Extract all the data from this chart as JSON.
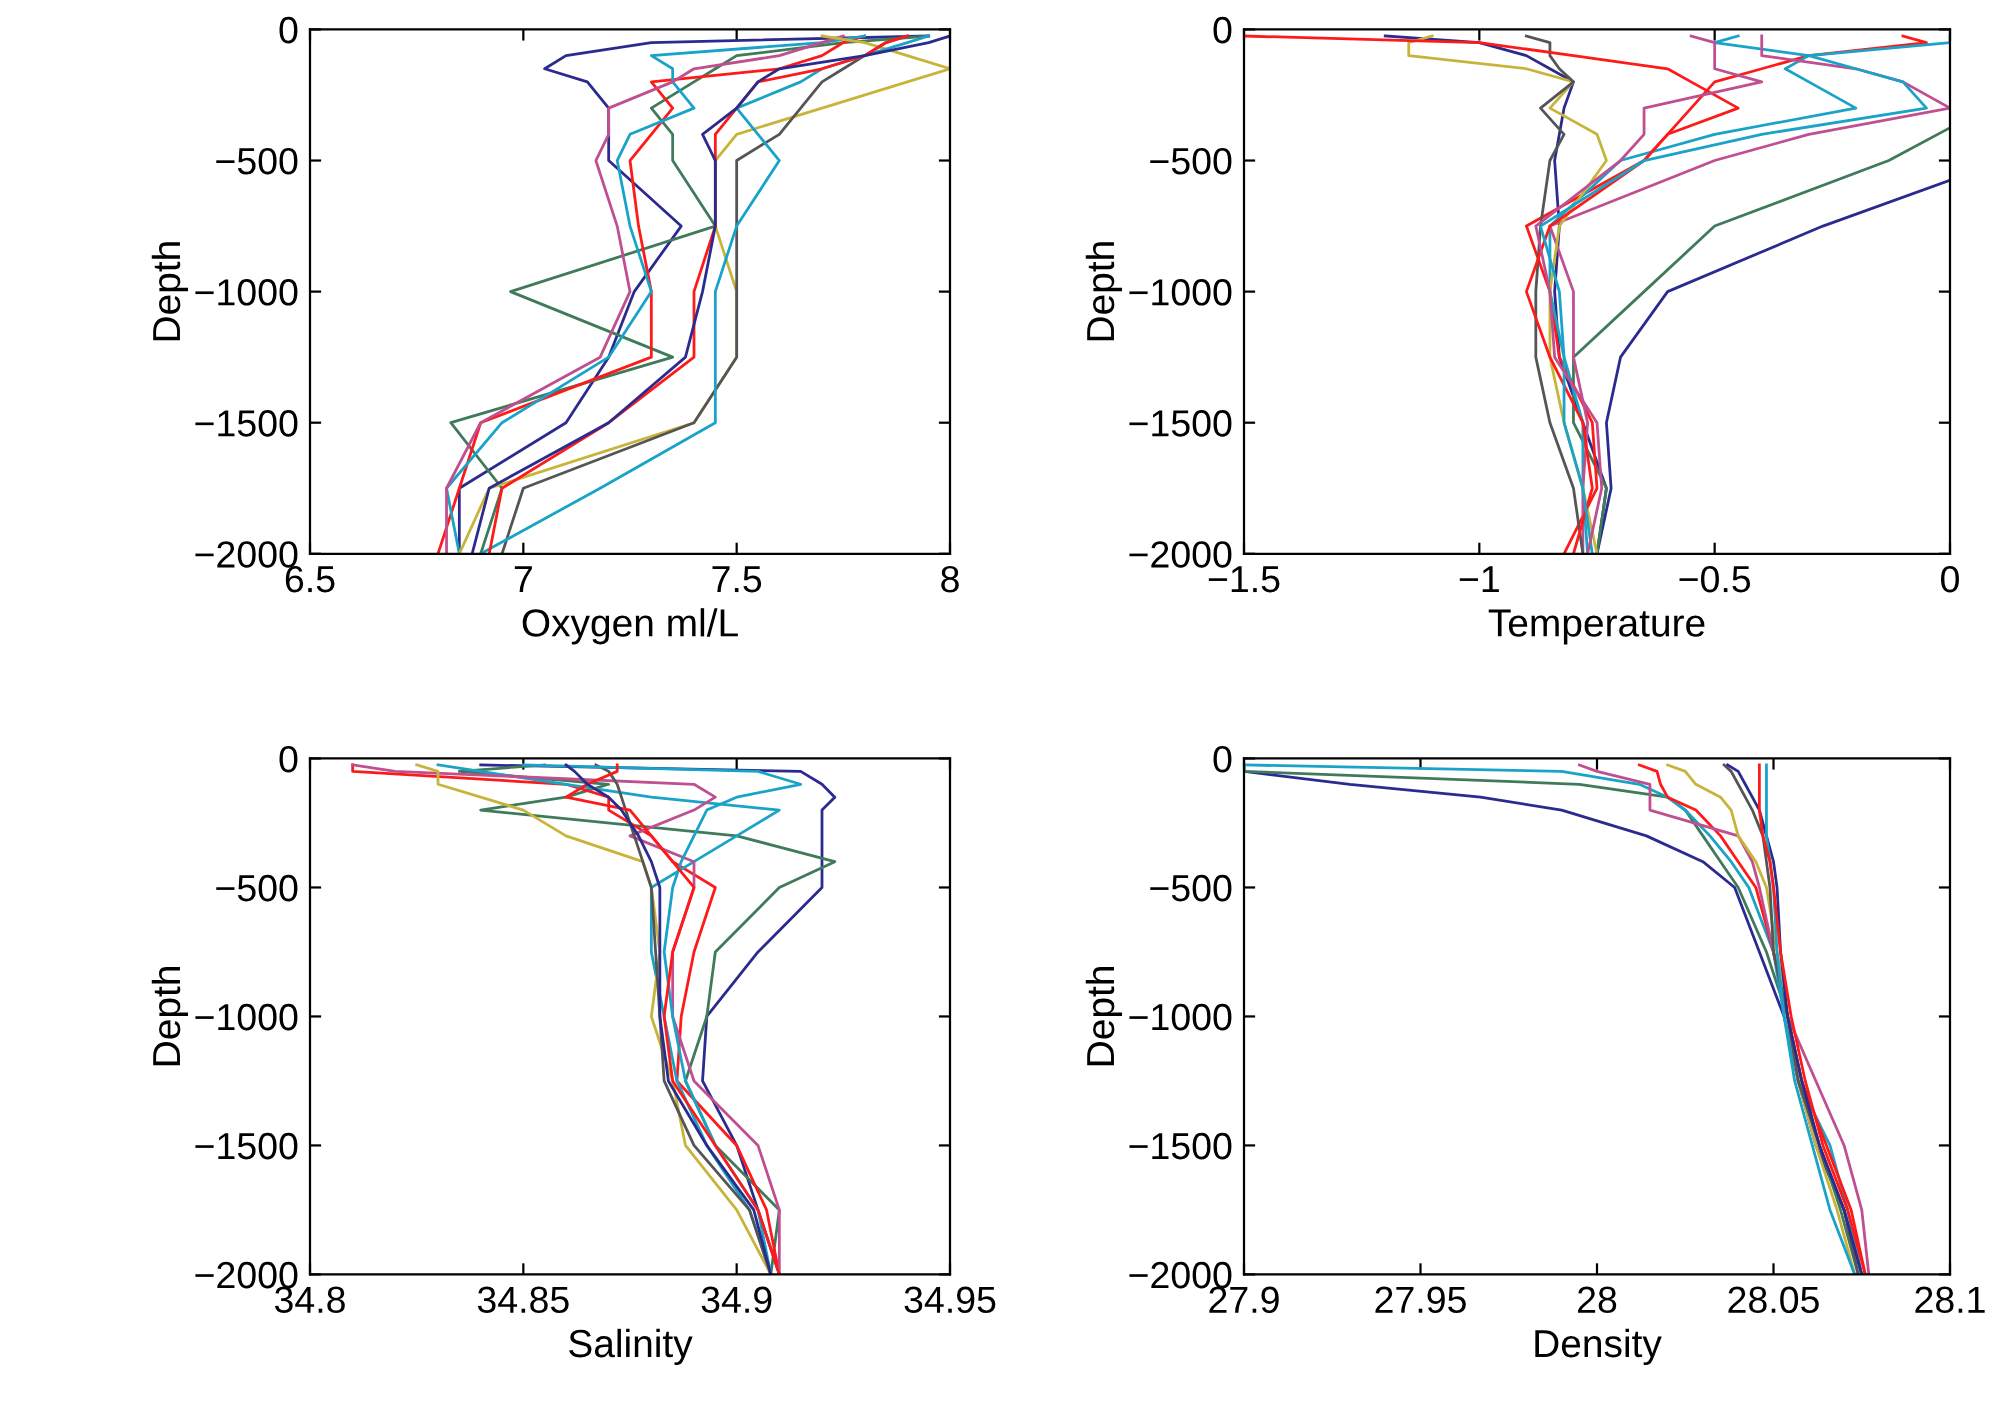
{
  "chart_data": [
    {
      "type": "line",
      "xlabel": "Oxygen ml/L",
      "ylabel": "Depth",
      "xlim": [
        6.5,
        8
      ],
      "ylim": [
        -2000,
        0
      ],
      "xticks": [
        6.5,
        7,
        7.5,
        8
      ],
      "yticks": [
        {
          "value": -2000,
          "label": "−2000"
        },
        {
          "value": -1500,
          "label": "−1500"
        },
        {
          "value": -1000,
          "label": "−1000"
        },
        {
          "value": -500,
          "label": "−500"
        },
        0
      ],
      "grid": false,
      "series": [
        {
          "color": "#2b2b8f",
          "x": [
            7.95,
            7.3,
            7.1,
            7.05,
            7.15,
            7.2,
            7.2,
            7.2,
            7.37,
            7.26,
            7.2,
            7.1,
            6.85,
            6.85
          ],
          "values": [
            -25,
            -50,
            -100,
            -150,
            -200,
            -300,
            -400,
            -500,
            -750,
            -1000,
            -1250,
            -1500,
            -1750,
            -2000
          ]
        },
        {
          "color": "#3f7a5a",
          "x": [
            7.95,
            7.75,
            7.5,
            7.45,
            7.4,
            7.3,
            7.35,
            7.35,
            7.45,
            6.97,
            7.35,
            6.83,
            6.95,
            6.9
          ],
          "values": [
            -25,
            -50,
            -100,
            -150,
            -200,
            -300,
            -400,
            -500,
            -750,
            -1000,
            -1250,
            -1500,
            -1750,
            -2000
          ]
        },
        {
          "color": "#ff1a1a",
          "x": [
            7.8,
            7.75,
            7.7,
            7.6,
            7.3,
            7.35,
            7.3,
            7.25,
            7.27,
            7.3,
            7.3,
            6.9,
            6.85,
            6.8
          ],
          "values": [
            -25,
            -50,
            -100,
            -150,
            -200,
            -300,
            -400,
            -500,
            -750,
            -1000,
            -1250,
            -1500,
            -1750,
            -2000
          ]
        },
        {
          "color": "#1aa3c8",
          "x": [
            7.8,
            7.7,
            7.3,
            7.35,
            7.35,
            7.4,
            7.25,
            7.22,
            7.25,
            7.3,
            7.2,
            6.95,
            6.82,
            6.85
          ],
          "values": [
            -25,
            -50,
            -100,
            -150,
            -200,
            -300,
            -400,
            -500,
            -750,
            -1000,
            -1250,
            -1500,
            -1750,
            -2000
          ]
        },
        {
          "color": "#c04f90",
          "x": [
            7.75,
            7.7,
            7.6,
            7.4,
            7.35,
            7.2,
            7.2,
            7.17,
            7.22,
            7.25,
            7.18,
            6.9,
            6.82,
            6.82
          ],
          "values": [
            -25,
            -50,
            -100,
            -150,
            -200,
            -300,
            -400,
            -500,
            -750,
            -1000,
            -1250,
            -1500,
            -1750,
            -2000
          ]
        },
        {
          "color": "#c8b43a",
          "x": [
            7.7,
            7.8,
            7.9,
            8.0,
            7.9,
            7.7,
            7.5,
            7.45,
            7.45,
            7.5,
            7.5,
            7.4,
            6.92,
            6.85
          ],
          "values": [
            -25,
            -50,
            -100,
            -150,
            -200,
            -300,
            -400,
            -500,
            -750,
            -1000,
            -1250,
            -1500,
            -1750,
            -2000
          ]
        },
        {
          "color": "#555555",
          "x": [
            7.9,
            7.85,
            7.8,
            7.75,
            7.7,
            7.65,
            7.6,
            7.5,
            7.5,
            7.5,
            7.5,
            7.4,
            7.0,
            6.95
          ],
          "values": [
            -25,
            -50,
            -100,
            -150,
            -200,
            -300,
            -400,
            -500,
            -750,
            -1000,
            -1250,
            -1500,
            -1750,
            -2000
          ]
        },
        {
          "color": "#1aa3c8",
          "x": [
            7.95,
            7.9,
            7.8,
            7.7,
            7.65,
            7.5,
            7.55,
            7.6,
            7.5,
            7.45,
            7.45,
            7.45,
            7.18,
            6.9
          ],
          "values": [
            -25,
            -50,
            -100,
            -150,
            -200,
            -300,
            -400,
            -500,
            -750,
            -1000,
            -1250,
            -1500,
            -1750,
            -2000
          ]
        },
        {
          "color": "#ff1a1a",
          "x": [
            7.9,
            7.85,
            7.8,
            7.7,
            7.55,
            7.5,
            7.45,
            7.45,
            7.45,
            7.4,
            7.4,
            7.2,
            6.95,
            6.92
          ],
          "values": [
            -25,
            -50,
            -100,
            -150,
            -200,
            -300,
            -400,
            -500,
            -750,
            -1000,
            -1250,
            -1500,
            -1750,
            -2000
          ]
        },
        {
          "color": "#2b2b8f",
          "x": [
            8.0,
            7.95,
            7.8,
            7.6,
            7.55,
            7.5,
            7.42,
            7.45,
            7.45,
            7.42,
            7.38,
            7.2,
            6.92,
            6.88
          ],
          "values": [
            -25,
            -50,
            -100,
            -150,
            -200,
            -300,
            -400,
            -500,
            -750,
            -1000,
            -1250,
            -1500,
            -1750,
            -2000
          ]
        }
      ]
    },
    {
      "type": "line",
      "xlabel": "Temperature",
      "ylabel": "Depth",
      "xlim": [
        -1.5,
        0
      ],
      "ylim": [
        -2000,
        0
      ],
      "xticks": [
        {
          "value": -1.5,
          "label": "−1.5"
        },
        {
          "value": -1,
          "label": "−1"
        },
        {
          "value": -0.5,
          "label": "−0.5"
        },
        0
      ],
      "yticks": [
        {
          "value": -2000,
          "label": "−2000"
        },
        {
          "value": -1500,
          "label": "−1500"
        },
        {
          "value": -1000,
          "label": "−1000"
        },
        {
          "value": -500,
          "label": "−500"
        },
        0
      ],
      "grid": false,
      "series": [
        {
          "color": "#2b2b8f",
          "x": [
            -1.2,
            -1.0,
            -0.9,
            -0.85,
            -0.8,
            -0.82,
            -0.83,
            -0.84,
            -0.83,
            -0.84,
            -0.83,
            -0.78,
            -0.73,
            -0.75
          ],
          "values": [
            -25,
            -50,
            -100,
            -150,
            -200,
            -300,
            -400,
            -500,
            -750,
            -1000,
            -1250,
            -1500,
            -1750,
            -2000
          ]
        },
        {
          "color": "#2b2b8f",
          "x": [
            0,
            -0.27,
            -0.6,
            -0.7,
            -0.73,
            -0.72,
            -0.75
          ],
          "values": [
            -575,
            -750,
            -1000,
            -1250,
            -1500,
            -1750,
            -2000
          ]
        },
        {
          "color": "#3f7a5a",
          "x": [
            0,
            -0.13,
            -0.5,
            -0.65,
            -0.8,
            -0.8,
            -0.73,
            -0.75
          ],
          "values": [
            -375,
            -500,
            -750,
            -1000,
            -1250,
            -1500,
            -1750,
            -2000
          ]
        },
        {
          "color": "#ff1a1a",
          "x": [
            -0.1,
            -0.05,
            -0.3,
            -0.4,
            -0.5,
            -0.55,
            -0.6,
            -0.65,
            -0.9,
            -0.85,
            -0.83,
            -0.76,
            -0.75,
            -0.82
          ],
          "values": [
            -25,
            -50,
            -100,
            -150,
            -200,
            -300,
            -400,
            -500,
            -750,
            -1000,
            -1250,
            -1500,
            -1750,
            -2000
          ]
        },
        {
          "color": "#1aa3c8",
          "x": [
            -0.45,
            -0.5,
            -0.3,
            -0.35,
            -0.3,
            -0.2,
            -0.5,
            -0.7,
            -0.85,
            -0.85,
            -0.82,
            -0.78,
            -0.78,
            -0.77
          ],
          "values": [
            -25,
            -50,
            -100,
            -150,
            -200,
            -300,
            -400,
            -500,
            -750,
            -1000,
            -1250,
            -1500,
            -1750,
            -2000
          ]
        },
        {
          "color": "#c04f90",
          "x": [
            -0.4,
            -0.4,
            -0.4,
            -0.2,
            -0.1,
            0,
            -0.3,
            -0.5,
            -0.85,
            -0.8,
            -0.8,
            -0.77,
            -0.78,
            -0.78
          ],
          "values": [
            -25,
            -50,
            -100,
            -150,
            -200,
            -300,
            -400,
            -500,
            -750,
            -1000,
            -1250,
            -1500,
            -1750,
            -2000
          ]
        },
        {
          "color": "#c8b43a",
          "x": [
            -1.1,
            -1.15,
            -1.15,
            -0.9,
            -0.8,
            -0.85,
            -0.75,
            -0.73,
            -0.83,
            -0.85,
            -0.85,
            -0.82,
            -0.78,
            -0.75
          ],
          "values": [
            -25,
            -50,
            -100,
            -150,
            -200,
            -300,
            -400,
            -500,
            -750,
            -1000,
            -1250,
            -1500,
            -1750,
            -2000
          ]
        },
        {
          "color": "#555555",
          "x": [
            -0.9,
            -0.85,
            -0.85,
            -0.83,
            -0.8,
            -0.87,
            -0.82,
            -0.85,
            -0.87,
            -0.88,
            -0.88,
            -0.85,
            -0.8,
            -0.78
          ],
          "values": [
            -25,
            -50,
            -100,
            -150,
            -200,
            -300,
            -400,
            -500,
            -750,
            -1000,
            -1250,
            -1500,
            -1750,
            -2000
          ]
        },
        {
          "color": "#ff1a1a",
          "x": [
            -1.5,
            -1.0,
            -0.8,
            -0.6,
            -0.55,
            -0.45,
            -0.6,
            -0.65,
            -0.85,
            -0.9,
            -0.85,
            -0.78,
            -0.76,
            -0.8
          ],
          "values": [
            -25,
            -50,
            -100,
            -150,
            -200,
            -300,
            -400,
            -500,
            -750,
            -1000,
            -1250,
            -1500,
            -1750,
            -2000
          ]
        },
        {
          "color": "#1aa3c8",
          "x": [
            0,
            0,
            -0.3,
            -0.2,
            -0.1,
            -0.05,
            -0.4,
            -0.65,
            -0.87,
            -0.83,
            -0.82,
            -0.82,
            -0.78,
            -0.76
          ],
          "values": [
            -25,
            -50,
            -100,
            -150,
            -200,
            -300,
            -400,
            -500,
            -750,
            -1000,
            -1250,
            -1500,
            -1750,
            -2000
          ]
        },
        {
          "color": "#c04f90",
          "x": [
            -0.55,
            -0.5,
            -0.5,
            -0.5,
            -0.4,
            -0.65,
            -0.65,
            -0.7,
            -0.88,
            -0.85,
            -0.84,
            -0.75,
            -0.74,
            -0.77
          ],
          "values": [
            -25,
            -50,
            -100,
            -150,
            -200,
            -300,
            -400,
            -500,
            -750,
            -1000,
            -1250,
            -1500,
            -1750,
            -2000
          ]
        }
      ]
    },
    {
      "type": "line",
      "xlabel": "Salinity",
      "ylabel": "Depth",
      "xlim": [
        34.8,
        34.95
      ],
      "ylim": [
        -2000,
        0
      ],
      "xticks": [
        34.8,
        34.85,
        34.9,
        34.95
      ],
      "yticks": [
        {
          "value": -2000,
          "label": "−2000"
        },
        {
          "value": -1500,
          "label": "−1500"
        },
        {
          "value": -1000,
          "label": "−1000"
        },
        {
          "value": -500,
          "label": "−500"
        },
        0
      ],
      "grid": false,
      "series": [
        {
          "color": "#2b2b8f",
          "x": [
            34.84,
            34.915,
            34.92,
            34.923,
            34.92,
            34.92,
            34.92,
            34.92,
            34.905,
            34.893,
            34.892,
            34.9,
            34.905,
            34.91
          ],
          "values": [
            -25,
            -50,
            -100,
            -150,
            -200,
            -300,
            -400,
            -500,
            -750,
            -1000,
            -1250,
            -1500,
            -1750,
            -2000
          ]
        },
        {
          "color": "#3f7a5a",
          "x": [
            34.855,
            34.835,
            34.87,
            34.86,
            34.84,
            34.9,
            34.923,
            34.91,
            34.895,
            34.893,
            34.888,
            34.895,
            34.91,
            34.908
          ],
          "values": [
            -25,
            -50,
            -100,
            -150,
            -200,
            -300,
            -400,
            -500,
            -750,
            -1000,
            -1250,
            -1500,
            -1750,
            -2000
          ]
        },
        {
          "color": "#ff1a1a",
          "x": [
            34.81,
            34.81,
            34.86,
            34.87,
            34.87,
            34.88,
            34.885,
            34.895,
            34.89,
            34.887,
            34.886,
            34.9,
            34.907,
            34.91
          ],
          "values": [
            -25,
            -50,
            -100,
            -150,
            -200,
            -300,
            -400,
            -500,
            -750,
            -1000,
            -1250,
            -1500,
            -1750,
            -2000
          ]
        },
        {
          "color": "#1aa3c8",
          "x": [
            34.83,
            34.84,
            34.86,
            34.88,
            34.91,
            34.9,
            34.89,
            34.88,
            34.88,
            34.883,
            34.886,
            34.893,
            34.903,
            34.908
          ],
          "values": [
            -25,
            -50,
            -100,
            -150,
            -200,
            -300,
            -400,
            -500,
            -750,
            -1000,
            -1250,
            -1500,
            -1750,
            -2000
          ]
        },
        {
          "color": "#c04f90",
          "x": [
            34.81,
            34.82,
            34.89,
            34.895,
            34.89,
            34.875,
            34.89,
            34.89,
            34.885,
            34.885,
            34.89,
            34.905,
            34.91,
            34.91
          ],
          "values": [
            -25,
            -50,
            -100,
            -150,
            -200,
            -300,
            -400,
            -500,
            -750,
            -1000,
            -1250,
            -1500,
            -1750,
            -2000
          ]
        },
        {
          "color": "#c8b43a",
          "x": [
            34.825,
            34.83,
            34.83,
            34.84,
            34.85,
            34.86,
            34.878,
            34.88,
            34.882,
            34.88,
            34.885,
            34.888,
            34.9,
            34.908
          ],
          "values": [
            -25,
            -50,
            -100,
            -150,
            -200,
            -300,
            -400,
            -500,
            -750,
            -1000,
            -1250,
            -1500,
            -1750,
            -2000
          ]
        },
        {
          "color": "#555555",
          "x": [
            34.867,
            34.87,
            34.872,
            34.873,
            34.874,
            34.876,
            34.878,
            34.88,
            34.881,
            34.882,
            34.883,
            34.89,
            34.903,
            34.908
          ],
          "values": [
            -25,
            -50,
            -100,
            -150,
            -200,
            -300,
            -400,
            -500,
            -750,
            -1000,
            -1250,
            -1500,
            -1750,
            -2000
          ]
        },
        {
          "color": "#1aa3c8",
          "x": [
            34.85,
            34.905,
            34.915,
            34.9,
            34.893,
            34.89,
            34.887,
            34.885,
            34.883,
            34.885,
            34.888,
            34.895,
            34.905,
            34.908
          ],
          "values": [
            -25,
            -50,
            -100,
            -150,
            -200,
            -300,
            -400,
            -500,
            -750,
            -1000,
            -1250,
            -1500,
            -1750,
            -2000
          ]
        },
        {
          "color": "#ff1a1a",
          "x": [
            34.872,
            34.872,
            34.865,
            34.86,
            34.875,
            34.88,
            34.885,
            34.89,
            34.885,
            34.883,
            34.885,
            34.895,
            34.905,
            34.91
          ],
          "values": [
            -25,
            -50,
            -100,
            -150,
            -200,
            -300,
            -400,
            -500,
            -750,
            -1000,
            -1250,
            -1500,
            -1750,
            -2000
          ]
        },
        {
          "color": "#2b2b8f",
          "x": [
            34.86,
            34.862,
            34.865,
            34.87,
            34.873,
            34.877,
            34.88,
            34.882,
            34.882,
            34.882,
            34.884,
            34.893,
            34.904,
            34.908
          ],
          "values": [
            -25,
            -50,
            -100,
            -150,
            -200,
            -300,
            -400,
            -500,
            -750,
            -1000,
            -1250,
            -1500,
            -1750,
            -2000
          ]
        }
      ]
    },
    {
      "type": "line",
      "xlabel": "Density",
      "ylabel": "Depth",
      "xlim": [
        27.9,
        28.1
      ],
      "ylim": [
        -2000,
        0
      ],
      "xticks": [
        27.9,
        27.95,
        28,
        28.05,
        28.1
      ],
      "yticks": [
        {
          "value": -2000,
          "label": "−2000"
        },
        {
          "value": -1500,
          "label": "−1500"
        },
        {
          "value": -1000,
          "label": "−1000"
        },
        {
          "value": -500,
          "label": "−500"
        },
        0
      ],
      "grid": false,
      "series": [
        {
          "color": "#2b2b8f",
          "x": [
            27.9,
            27.9,
            27.93,
            27.967,
            27.99,
            28.014,
            28.03,
            28.039,
            28.046,
            28.053,
            28.057,
            28.062,
            28.07,
            28.075
          ],
          "values": [
            -25,
            -50,
            -100,
            -150,
            -200,
            -300,
            -400,
            -500,
            -750,
            -1000,
            -1250,
            -1500,
            -1750,
            -2000
          ]
        },
        {
          "color": "#3f7a5a",
          "x": [
            27.9,
            27.9,
            27.995,
            28.02,
            28.025,
            28.03,
            28.035,
            28.04,
            28.048,
            28.054,
            28.058,
            28.063,
            28.069,
            28.074
          ],
          "values": [
            -25,
            -50,
            -100,
            -150,
            -200,
            -300,
            -400,
            -500,
            -750,
            -1000,
            -1250,
            -1500,
            -1750,
            -2000
          ]
        },
        {
          "color": "#1aa3c8",
          "x": [
            27.9,
            27.99,
            28.012,
            28.02,
            28.025,
            28.032,
            28.038,
            28.043,
            28.05,
            28.053,
            28.057,
            28.066,
            28.071,
            28.075
          ],
          "values": [
            -25,
            -50,
            -100,
            -150,
            -200,
            -300,
            -400,
            -500,
            -750,
            -1000,
            -1250,
            -1500,
            -1750,
            -2000
          ]
        },
        {
          "color": "#ff1a1a",
          "x": [
            28.012,
            28.017,
            28.018,
            28.02,
            28.028,
            28.035,
            28.04,
            28.045,
            28.05,
            28.054,
            28.058,
            28.065,
            28.072,
            28.076
          ],
          "values": [
            -25,
            -50,
            -100,
            -150,
            -200,
            -300,
            -400,
            -500,
            -750,
            -1000,
            -1250,
            -1500,
            -1750,
            -2000
          ]
        },
        {
          "color": "#c04f90",
          "x": [
            27.995,
            28.0,
            28.015,
            28.015,
            28.015,
            28.04,
            28.044,
            28.046,
            28.05,
            28.054,
            28.062,
            28.07,
            28.075,
            28.077
          ],
          "values": [
            -25,
            -50,
            -100,
            -150,
            -200,
            -300,
            -400,
            -500,
            -750,
            -1000,
            -1250,
            -1500,
            -1750,
            -2000
          ]
        },
        {
          "color": "#c8b43a",
          "x": [
            28.02,
            28.025,
            28.028,
            28.035,
            28.038,
            28.04,
            28.045,
            28.048,
            28.051,
            28.054,
            28.057,
            28.062,
            28.068,
            28.073
          ],
          "values": [
            -25,
            -50,
            -100,
            -150,
            -200,
            -300,
            -400,
            -500,
            -750,
            -1000,
            -1250,
            -1500,
            -1750,
            -2000
          ]
        },
        {
          "color": "#555555",
          "x": [
            28.036,
            28.038,
            28.04,
            28.042,
            28.044,
            28.047,
            28.048,
            28.049,
            28.05,
            28.054,
            28.057,
            28.063,
            28.07,
            28.074
          ],
          "values": [
            -25,
            -50,
            -100,
            -150,
            -200,
            -300,
            -400,
            -500,
            -750,
            -1000,
            -1250,
            -1500,
            -1750,
            -2000
          ]
        },
        {
          "color": "#2b2b8f",
          "x": [
            28.037,
            28.04,
            28.042,
            28.044,
            28.046,
            28.048,
            28.05,
            28.051,
            28.052,
            28.054,
            28.058,
            28.063,
            28.07,
            28.075
          ],
          "values": [
            -25,
            -50,
            -100,
            -150,
            -200,
            -300,
            -400,
            -500,
            -750,
            -1000,
            -1250,
            -1500,
            -1750,
            -2000
          ]
        },
        {
          "color": "#1aa3c8",
          "x": [
            28.048,
            28.048,
            28.048,
            28.048,
            28.048,
            28.048,
            28.049,
            28.05,
            28.051,
            28.053,
            28.056,
            28.061,
            28.066,
            28.073
          ],
          "values": [
            -25,
            -50,
            -100,
            -150,
            -200,
            -300,
            -400,
            -500,
            -750,
            -1000,
            -1250,
            -1500,
            -1750,
            -2000
          ]
        },
        {
          "color": "#ff1a1a",
          "x": [
            28.046,
            28.046,
            28.046,
            28.046,
            28.046,
            28.047,
            28.049,
            28.05,
            28.052,
            28.055,
            28.059,
            28.064,
            28.071,
            28.076
          ],
          "values": [
            -25,
            -50,
            -100,
            -150,
            -200,
            -300,
            -400,
            -500,
            -750,
            -1000,
            -1250,
            -1500,
            -1750,
            -2000
          ]
        }
      ]
    }
  ]
}
